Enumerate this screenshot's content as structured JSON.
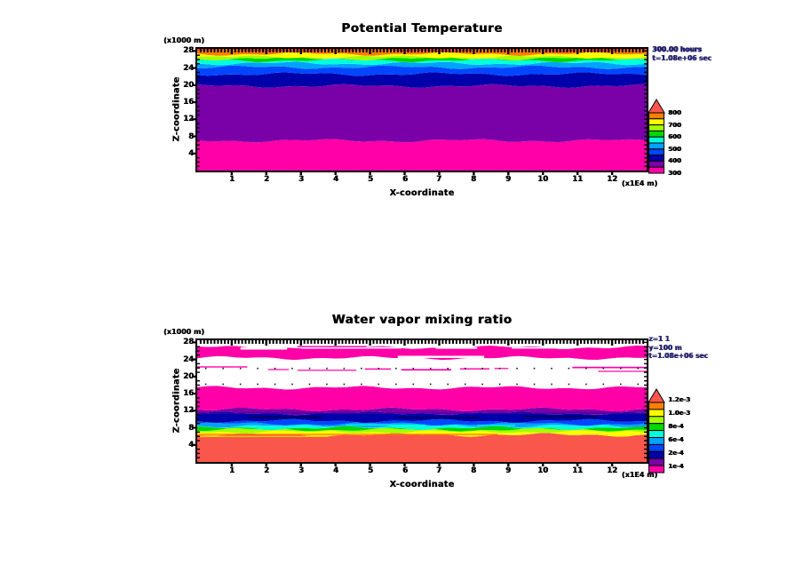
{
  "page": {
    "background": "#ffffff"
  },
  "chart_data": [
    {
      "type": "filled_contour",
      "title": "Potential Temperature",
      "xlabel": "X-coordinate",
      "ylabel": "Z-coordinate",
      "x_unit_label": "(x1E4 m)",
      "y_unit_label": "(x1000 m)",
      "xlim": [
        0,
        13
      ],
      "zlim": [
        0,
        28.5
      ],
      "x_ticks": [
        "1",
        "2",
        "3",
        "4",
        "5",
        "6",
        "7",
        "8",
        "9",
        "10",
        "11",
        "12"
      ],
      "y_ticks": [
        "4",
        "8",
        "12",
        "16",
        "20",
        "24",
        "28"
      ],
      "annotations": [
        "300.00 hours",
        "t=1.08e+06 sec"
      ],
      "colorbar_labels": [
        "800",
        "700",
        "600",
        "500",
        "400",
        "300"
      ],
      "palette_top_to_bottom": [
        "#ff7f00",
        "#ffff00",
        "#a6ff00",
        "#00d800",
        "#00ffdc",
        "#00a2ff",
        "#0046ff",
        "#0000aa",
        "#7a00a8",
        "#ff00a8"
      ],
      "overflow_color": "#f9564c",
      "bands": [
        {
          "z0": 0.0,
          "z1": 7.0,
          "color": "#ff00a8"
        },
        {
          "z0": 7.0,
          "z1": 19.8,
          "color": "#7a00a8"
        },
        {
          "z0": 19.8,
          "z1": 22.6,
          "color": "#0000aa"
        },
        {
          "z0": 22.6,
          "z1": 24.2,
          "color": "#0046ff"
        },
        {
          "z0": 24.2,
          "z1": 25.1,
          "color": "#00a2ff"
        },
        {
          "z0": 25.1,
          "z1": 25.8,
          "color": "#00ffdc"
        },
        {
          "z0": 25.8,
          "z1": 26.25,
          "color": "#00d800"
        },
        {
          "z0": 26.25,
          "z1": 26.6,
          "color": "#a6ff00"
        },
        {
          "z0": 26.6,
          "z1": 27.3,
          "color": "#ffff00"
        },
        {
          "z0": 27.3,
          "z1": 28.0,
          "color": "#ff7f00"
        },
        {
          "z0": 28.0,
          "z1": 28.5,
          "color": "#fb4638"
        }
      ],
      "patches": [],
      "dot_rows": [],
      "dot_x_step": 0.5
    },
    {
      "type": "filled_contour",
      "title": "Water vapor mixing ratio",
      "xlabel": "X-coordinate",
      "ylabel": "Z-coordinate",
      "x_unit_label": "(x1E4 m)",
      "y_unit_label": "(x1000 m)",
      "xlim": [
        0,
        13
      ],
      "zlim": [
        0,
        28.5
      ],
      "x_ticks": [
        "1",
        "2",
        "3",
        "4",
        "5",
        "6",
        "7",
        "8",
        "9",
        "10",
        "11",
        "12"
      ],
      "y_ticks": [
        "4",
        "8",
        "12",
        "16",
        "20",
        "24",
        "28"
      ],
      "annotations": [
        "z=1 1",
        "y=100 m",
        "t=1.08e+06 sec"
      ],
      "colorbar_labels": [
        "1.2e-3",
        "1.0e-3",
        "8e-4",
        "6e-4",
        "2e-4",
        "1e-4"
      ],
      "palette_top_to_bottom": [
        "#ff7f00",
        "#ffff00",
        "#a6ff00",
        "#00d800",
        "#00ffdc",
        "#00a2ff",
        "#0046ff",
        "#0000aa",
        "#7a00a8",
        "#ff00a8"
      ],
      "overflow_color": "#f9564c",
      "bands": [
        {
          "z0": 0.0,
          "z1": 6.35,
          "color": "#f9564c"
        },
        {
          "z0": 6.35,
          "z1": 7.1,
          "color": "#ffff00"
        },
        {
          "z0": 7.1,
          "z1": 7.55,
          "color": "#a6ff00"
        },
        {
          "z0": 7.55,
          "z1": 7.95,
          "color": "#00d800"
        },
        {
          "z0": 7.95,
          "z1": 8.45,
          "color": "#00ffdc"
        },
        {
          "z0": 8.45,
          "z1": 8.9,
          "color": "#00a2ff"
        },
        {
          "z0": 8.9,
          "z1": 9.6,
          "color": "#0046ff"
        },
        {
          "z0": 9.6,
          "z1": 11.4,
          "color": "#0000aa"
        },
        {
          "z0": 11.4,
          "z1": 12.3,
          "color": "#7a00a8"
        },
        {
          "z0": 12.3,
          "z1": 17.4,
          "color": "#ff00a8"
        },
        {
          "z0": 17.4,
          "z1": 24.35,
          "color": "#ffffff"
        },
        {
          "z0": 24.35,
          "z1": 26.85,
          "color": "#ff00a8"
        },
        {
          "z0": 26.85,
          "z1": 28.5,
          "color": "#ffffff"
        }
      ],
      "patches": [
        {
          "x0": 0.0,
          "x1": 8.7,
          "z0": 6.3,
          "z1": 6.6,
          "color": "#ff7f00"
        },
        {
          "x0": 0.0,
          "x1": 3.8,
          "z0": 5.85,
          "z1": 6.1,
          "color": "#ffd400"
        },
        {
          "x0": 1.5,
          "x1": 3.6,
          "z0": 10.2,
          "z1": 10.8,
          "color": "#000078"
        },
        {
          "x0": 5.8,
          "x1": 8.2,
          "z0": 10.1,
          "z1": 10.6,
          "color": "#000078"
        },
        {
          "x0": 9.4,
          "x1": 11.6,
          "z0": 10.3,
          "z1": 10.9,
          "color": "#000078"
        },
        {
          "x0": 0.0,
          "x1": 13.0,
          "z0": 11.3,
          "z1": 11.55,
          "color": "#4600a0"
        },
        {
          "x0": 4.3,
          "x1": 6.6,
          "z0": 8.55,
          "z1": 8.8,
          "color": "#00ffdc"
        },
        {
          "x0": 8.1,
          "x1": 9.2,
          "z0": 8.5,
          "z1": 8.7,
          "color": "#00ffdc"
        },
        {
          "x0": 0.0,
          "x1": 1.45,
          "z0": 22.1,
          "z1": 22.4,
          "color": "#ff00a8"
        },
        {
          "x0": 2.05,
          "x1": 2.65,
          "z0": 21.5,
          "z1": 21.75,
          "color": "#ff00a8"
        },
        {
          "x0": 2.9,
          "x1": 4.6,
          "z0": 21.35,
          "z1": 21.6,
          "color": "#ff00a8"
        },
        {
          "x0": 4.85,
          "x1": 5.6,
          "z0": 21.6,
          "z1": 21.9,
          "color": "#ff00a8"
        },
        {
          "x0": 5.9,
          "x1": 7.35,
          "z0": 21.4,
          "z1": 21.75,
          "color": "#ff00a8"
        },
        {
          "x0": 7.6,
          "x1": 8.45,
          "z0": 21.65,
          "z1": 21.95,
          "color": "#ff00a8"
        },
        {
          "x0": 8.6,
          "x1": 9.0,
          "z0": 21.8,
          "z1": 22.0,
          "color": "#ff00a8"
        },
        {
          "x0": 10.85,
          "x1": 13.0,
          "z0": 21.95,
          "z1": 22.3,
          "color": "#ff00a8"
        },
        {
          "x0": 11.6,
          "x1": 13.0,
          "z0": 21.1,
          "z1": 21.35,
          "color": "#ff00a8"
        },
        {
          "x0": 1.25,
          "x1": 2.6,
          "z0": 26.3,
          "z1": 26.85,
          "color": "#ffffff"
        },
        {
          "x0": 3.1,
          "x1": 5.9,
          "z0": 26.55,
          "z1": 26.9,
          "color": "#ffffff"
        },
        {
          "x0": 6.9,
          "x1": 8.1,
          "z0": 26.5,
          "z1": 26.85,
          "color": "#ffffff"
        },
        {
          "x0": 9.1,
          "x1": 10.4,
          "z0": 26.55,
          "z1": 26.9,
          "color": "#ffffff"
        },
        {
          "x0": 5.8,
          "x1": 8.3,
          "z0": 24.35,
          "z1": 24.85,
          "color": "#ffffff"
        },
        {
          "x0": 2.9,
          "x1": 4.9,
          "z0": 26.85,
          "z1": 27.15,
          "color": "#ff00a8"
        }
      ],
      "dot_rows": [
        18.2,
        21.9
      ],
      "dot_x_step": 0.5
    }
  ]
}
